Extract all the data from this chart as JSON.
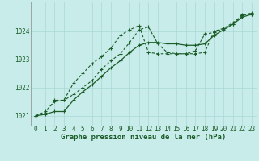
{
  "title": "Graphe pression niveau de la mer (hPa)",
  "bg_color": "#c8ece9",
  "grid_color": "#a8d8d4",
  "line_color": "#1a5c28",
  "xlim": [
    -0.5,
    23.5
  ],
  "ylim": [
    1020.65,
    1025.05
  ],
  "yticks": [
    1021,
    1022,
    1023,
    1024
  ],
  "xticks": [
    0,
    1,
    2,
    3,
    4,
    5,
    6,
    7,
    8,
    9,
    10,
    11,
    12,
    13,
    14,
    15,
    16,
    17,
    18,
    19,
    20,
    21,
    22,
    23
  ],
  "series1_x": [
    0,
    1,
    2,
    3,
    4,
    5,
    6,
    7,
    8,
    9,
    10,
    11,
    12,
    13,
    14,
    15,
    16,
    17,
    18,
    19,
    20,
    21,
    22,
    23
  ],
  "series1_y": [
    1021.0,
    1021.15,
    1021.5,
    1021.55,
    1021.75,
    1022.0,
    1022.25,
    1022.65,
    1022.95,
    1023.2,
    1023.6,
    1024.05,
    1024.15,
    1023.55,
    1023.25,
    1023.2,
    1023.2,
    1023.2,
    1023.25,
    1024.0,
    1024.1,
    1024.3,
    1024.55,
    1024.65
  ],
  "series2_x": [
    0,
    1,
    2,
    3,
    4,
    5,
    6,
    7,
    8,
    9,
    10,
    11,
    12,
    13,
    14,
    15,
    16,
    17,
    18,
    19,
    20,
    21,
    22,
    23
  ],
  "series2_y": [
    1021.0,
    1021.05,
    1021.15,
    1021.15,
    1021.55,
    1021.85,
    1022.1,
    1022.4,
    1022.7,
    1022.95,
    1023.25,
    1023.5,
    1023.6,
    1023.6,
    1023.55,
    1023.55,
    1023.5,
    1023.5,
    1023.55,
    1023.85,
    1024.05,
    1024.25,
    1024.5,
    1024.6
  ],
  "series3_x": [
    0,
    1,
    2,
    3,
    4,
    5,
    6,
    7,
    8,
    9,
    10,
    11,
    12,
    13,
    14,
    15,
    16,
    17,
    18,
    19,
    20,
    21,
    22,
    23
  ],
  "series3_y": [
    1021.0,
    1021.1,
    1021.55,
    1021.55,
    1022.15,
    1022.5,
    1022.85,
    1023.1,
    1023.4,
    1023.85,
    1024.05,
    1024.2,
    1023.25,
    1023.2,
    1023.2,
    1023.2,
    1023.2,
    1023.3,
    1023.9,
    1023.95,
    1024.1,
    1024.25,
    1024.6,
    1024.6
  ]
}
